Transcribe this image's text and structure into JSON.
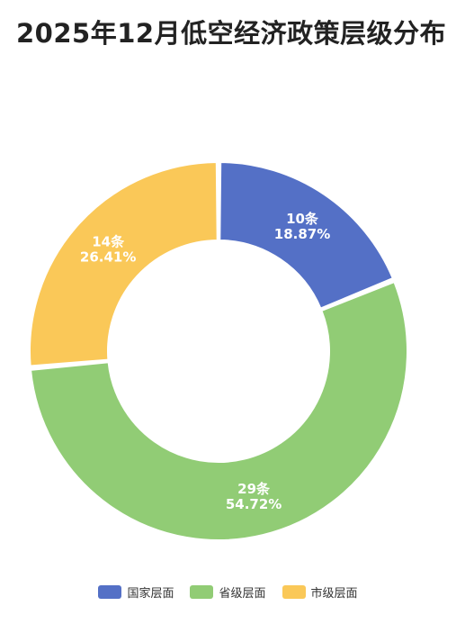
{
  "chart_data": {
    "type": "pie",
    "title": "2025年12月低空经济政策层级分布",
    "slices": [
      {
        "name": "国家层面",
        "value": 10,
        "value_label": "10条",
        "percent_label": "18.87%",
        "color": "#5470c6"
      },
      {
        "name": "省级层面",
        "value": 29,
        "value_label": "29条",
        "percent_label": "54.72%",
        "color": "#91cc75"
      },
      {
        "name": "市级层面",
        "value": 14,
        "value_label": "14条",
        "percent_label": "26.41%",
        "color": "#fac858"
      }
    ],
    "donut": true,
    "legend_position": "bottom"
  }
}
